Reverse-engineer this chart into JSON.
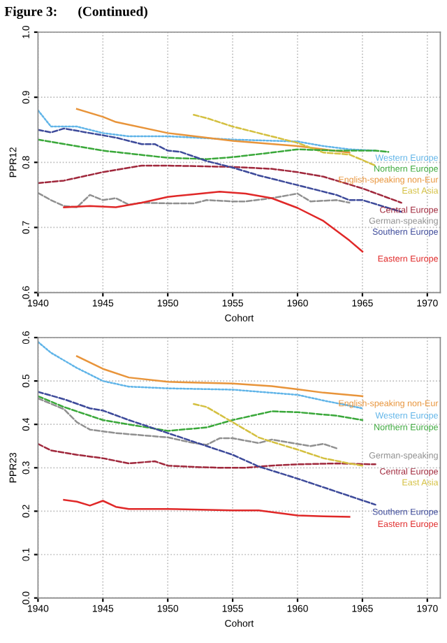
{
  "chart_data": [
    {
      "type": "line",
      "title": "Figure 3:      (Continued)",
      "xlabel": "Cohort",
      "ylabel": "PPR12",
      "xlim": [
        1940,
        1971
      ],
      "ylim": [
        0.6,
        1.0
      ],
      "xticks": [
        1940,
        1945,
        1950,
        1955,
        1960,
        1965,
        1970
      ],
      "yticks": [
        0.6,
        0.7,
        0.8,
        0.9,
        {
          "value": 1.0,
          "label": "1.0"
        }
      ],
      "grid": true,
      "legend": false,
      "series": [
        {
          "name": "Western Europe",
          "color": "#5fb4e8",
          "line_style": "dotted",
          "x": [
            1940,
            1941,
            1943,
            1945,
            1947,
            1950,
            1955,
            1960,
            1962,
            1964,
            1966
          ],
          "values": [
            0.88,
            0.855,
            0.855,
            0.845,
            0.84,
            0.84,
            0.835,
            0.832,
            0.825,
            0.82,
            0.818
          ]
        },
        {
          "name": "English-speaking non-Eur",
          "color": "#e8943a",
          "line_style": "solid",
          "x": [
            1943,
            1945,
            1946,
            1950,
            1955,
            1960,
            1964
          ],
          "values": [
            0.882,
            0.87,
            0.862,
            0.845,
            0.833,
            0.825,
            0.815
          ]
        },
        {
          "name": "East Asia",
          "color": "#d4c040",
          "line_style": "dashed",
          "x": [
            1952,
            1953,
            1955,
            1957,
            1960,
            1962,
            1964,
            1966
          ],
          "values": [
            0.873,
            0.868,
            0.855,
            0.845,
            0.83,
            0.815,
            0.812,
            0.795
          ]
        },
        {
          "name": "Northern Europe",
          "color": "#3aa83a",
          "line_style": "dashed",
          "x": [
            1940,
            1945,
            1950,
            1953,
            1955,
            1958,
            1960,
            1963,
            1966,
            1967
          ],
          "values": [
            0.835,
            0.818,
            0.807,
            0.805,
            0.808,
            0.815,
            0.82,
            0.818,
            0.818,
            0.816
          ]
        },
        {
          "name": "Central Europe",
          "color": "#a0283c",
          "line_style": "dashed",
          "x": [
            1940,
            1942,
            1945,
            1948,
            1950,
            1955,
            1958,
            1960,
            1962,
            1965,
            1968
          ],
          "values": [
            0.768,
            0.772,
            0.785,
            0.795,
            0.795,
            0.793,
            0.79,
            0.785,
            0.778,
            0.76,
            0.738
          ]
        },
        {
          "name": "German-speaking",
          "color": "#909090",
          "line_style": "dashed",
          "x": [
            1940,
            1941,
            1942,
            1943,
            1944,
            1945,
            1946,
            1947,
            1948,
            1950,
            1952,
            1953,
            1955,
            1956,
            1958,
            1960,
            1961,
            1963,
            1964
          ],
          "values": [
            0.753,
            0.742,
            0.733,
            0.731,
            0.75,
            0.742,
            0.745,
            0.735,
            0.738,
            0.737,
            0.737,
            0.742,
            0.74,
            0.74,
            0.745,
            0.752,
            0.74,
            0.742,
            0.738
          ]
        },
        {
          "name": "Southern Europe",
          "color": "#3d4a9a",
          "line_style": "dashed",
          "x": [
            1940,
            1941,
            1942,
            1944,
            1946,
            1948,
            1949,
            1950,
            1951,
            1953,
            1955,
            1957,
            1960,
            1963,
            1964,
            1965,
            1968
          ],
          "values": [
            0.85,
            0.846,
            0.852,
            0.845,
            0.838,
            0.828,
            0.828,
            0.818,
            0.816,
            0.802,
            0.792,
            0.78,
            0.765,
            0.75,
            0.742,
            0.742,
            0.724
          ]
        },
        {
          "name": "Eastern Europe",
          "color": "#e02828",
          "line_style": "solid",
          "x": [
            1942,
            1944,
            1946,
            1948,
            1950,
            1952,
            1954,
            1956,
            1958,
            1960,
            1962,
            1964,
            1965
          ],
          "values": [
            0.731,
            0.733,
            0.731,
            0.738,
            0.747,
            0.751,
            0.755,
            0.752,
            0.745,
            0.73,
            0.71,
            0.68,
            0.663
          ]
        }
      ]
    },
    {
      "type": "line",
      "xlabel": "Cohort",
      "ylabel": "PPR23",
      "xlim": [
        1940,
        1971
      ],
      "ylim": [
        0.0,
        0.6
      ],
      "xticks": [
        1940,
        1945,
        1950,
        1955,
        1960,
        1965,
        1970
      ],
      "yticks": [
        {
          "value": 0.0,
          "label": "0.0"
        },
        0.1,
        0.2,
        0.3,
        0.4,
        0.5,
        0.6
      ],
      "grid": true,
      "legend": false,
      "series": [
        {
          "name": "English-speaking non-Eur",
          "color": "#e8943a",
          "line_style": "solid",
          "x": [
            1943,
            1945,
            1947,
            1950,
            1955,
            1958,
            1960,
            1962,
            1965
          ],
          "values": [
            0.557,
            0.528,
            0.508,
            0.498,
            0.494,
            0.488,
            0.481,
            0.473,
            0.465
          ]
        },
        {
          "name": "Western Europe",
          "color": "#5fb4e8",
          "line_style": "dotted",
          "x": [
            1940,
            1941,
            1943,
            1945,
            1947,
            1950,
            1955,
            1960,
            1962,
            1965
          ],
          "values": [
            0.59,
            0.565,
            0.53,
            0.5,
            0.487,
            0.483,
            0.48,
            0.468,
            0.455,
            0.437
          ]
        },
        {
          "name": "Northern Europe",
          "color": "#3aa83a",
          "line_style": "dashed",
          "x": [
            1940,
            1942,
            1945,
            1948,
            1950,
            1953,
            1955,
            1958,
            1960,
            1963,
            1965
          ],
          "values": [
            0.465,
            0.44,
            0.41,
            0.395,
            0.385,
            0.393,
            0.41,
            0.43,
            0.428,
            0.42,
            0.41
          ]
        },
        {
          "name": "German-speaking",
          "color": "#909090",
          "line_style": "dashed",
          "x": [
            1940,
            1942,
            1943,
            1944,
            1946,
            1948,
            1950,
            1952,
            1953,
            1954,
            1955,
            1957,
            1958,
            1960,
            1961,
            1962,
            1963
          ],
          "values": [
            0.46,
            0.435,
            0.405,
            0.388,
            0.38,
            0.375,
            0.37,
            0.357,
            0.353,
            0.368,
            0.368,
            0.357,
            0.365,
            0.355,
            0.35,
            0.355,
            0.345
          ]
        },
        {
          "name": "Central Europe",
          "color": "#a0283c",
          "line_style": "dashed",
          "x": [
            1940,
            1941,
            1943,
            1945,
            1947,
            1949,
            1950,
            1952,
            1954,
            1956,
            1958,
            1960,
            1963,
            1966
          ],
          "values": [
            0.355,
            0.34,
            0.33,
            0.322,
            0.31,
            0.315,
            0.305,
            0.302,
            0.3,
            0.3,
            0.305,
            0.308,
            0.31,
            0.308
          ]
        },
        {
          "name": "East Asia",
          "color": "#d4c040",
          "line_style": "dashed",
          "x": [
            1952,
            1953,
            1955,
            1957,
            1958,
            1960,
            1962,
            1964,
            1965
          ],
          "values": [
            0.447,
            0.44,
            0.405,
            0.37,
            0.36,
            0.342,
            0.322,
            0.31,
            0.305
          ]
        },
        {
          "name": "Southern Europe",
          "color": "#3d4a9a",
          "line_style": "dashed",
          "x": [
            1940,
            1942,
            1944,
            1945,
            1947,
            1950,
            1953,
            1955,
            1957,
            1960,
            1963,
            1966
          ],
          "values": [
            0.475,
            0.458,
            0.437,
            0.432,
            0.41,
            0.38,
            0.35,
            0.33,
            0.303,
            0.275,
            0.245,
            0.215
          ]
        },
        {
          "name": "Eastern Europe",
          "color": "#e02828",
          "line_style": "solid",
          "x": [
            1942,
            1943,
            1944,
            1945,
            1946,
            1947,
            1950,
            1955,
            1957,
            1960,
            1962,
            1964
          ],
          "values": [
            0.226,
            0.222,
            0.213,
            0.224,
            0.21,
            0.205,
            0.205,
            0.202,
            0.202,
            0.19,
            0.188,
            0.187
          ]
        }
      ]
    }
  ]
}
